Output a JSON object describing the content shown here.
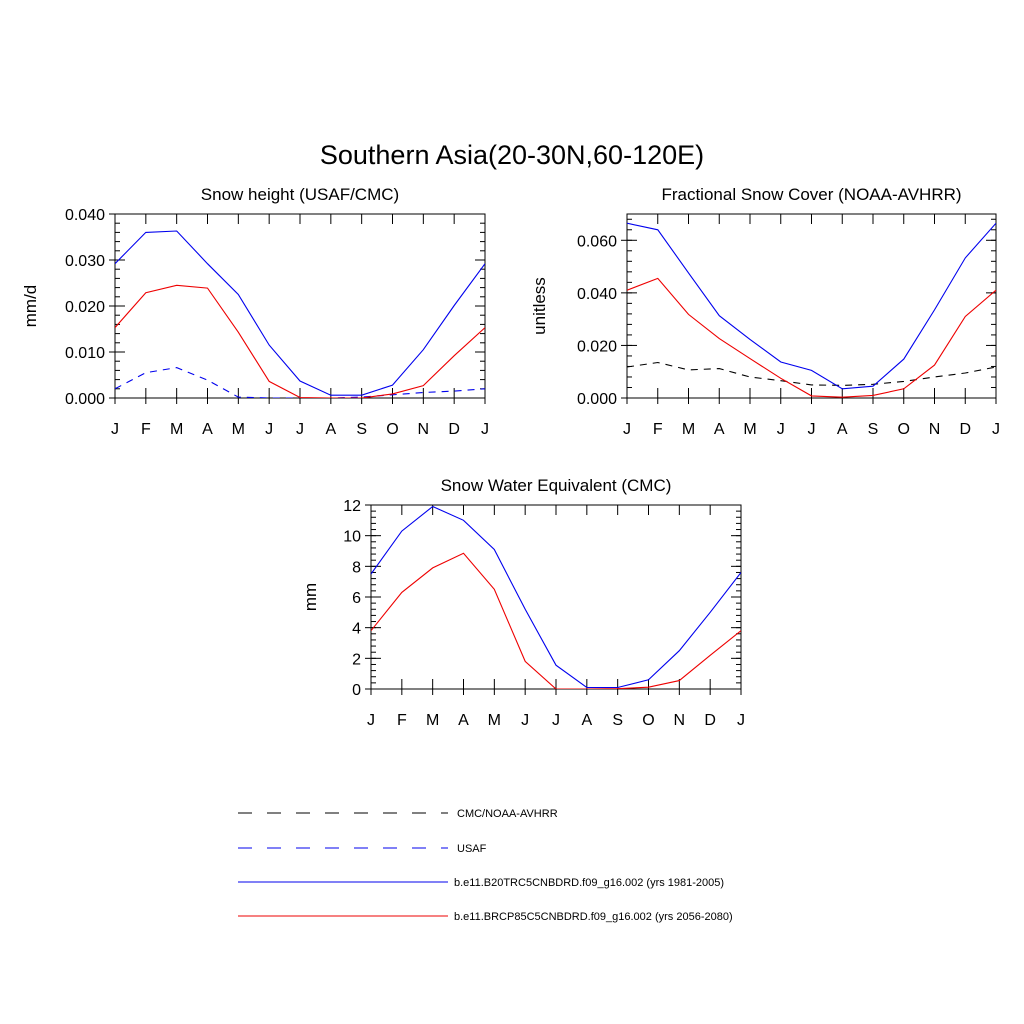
{
  "figure": {
    "title": "Southern Asia(20-30N,60-120E)"
  },
  "months": [
    "J",
    "F",
    "M",
    "A",
    "M",
    "J",
    "J",
    "A",
    "S",
    "O",
    "N",
    "D",
    "J"
  ],
  "colors": {
    "obs": "#000000",
    "usaf": "#0000ee",
    "hist": "#0000ee",
    "future": "#ee0000"
  },
  "legend": [
    {
      "key": "obs",
      "label": "CMC/NOAA-AVHRR",
      "dash": true,
      "color": "#000000"
    },
    {
      "key": "usaf",
      "label": "USAF",
      "dash": true,
      "color": "#0000ee"
    },
    {
      "key": "hist",
      "label": "b.e11.B20TRC5CNBDRD.f09_g16.002 (yrs 1981-2005)",
      "dash": false,
      "color": "#0000ee"
    },
    {
      "key": "future",
      "label": "b.e11.BRCP85C5CNBDRD.f09_g16.002 (yrs 2056-2080)",
      "dash": false,
      "color": "#ee0000"
    }
  ],
  "chart_data": [
    {
      "type": "line",
      "title": "Snow height (USAF/CMC)",
      "ylabel": "mm/d",
      "categories": [
        "J",
        "F",
        "M",
        "A",
        "M",
        "J",
        "J",
        "A",
        "S",
        "O",
        "N",
        "D",
        "J"
      ],
      "ylim": [
        0,
        0.04
      ],
      "yticks": [
        "0.000",
        "0.010",
        "0.020",
        "0.030",
        "0.040"
      ],
      "ytick_values": [
        0,
        0.01,
        0.02,
        0.03,
        0.04
      ],
      "series": [
        {
          "key": "obs",
          "values": [
            0,
            0,
            0,
            0,
            0,
            0,
            0,
            0,
            0,
            0,
            0,
            0,
            0
          ]
        },
        {
          "key": "usaf",
          "values": [
            0.002,
            0.0055,
            0.0066,
            0.0039,
            0.0002,
            0,
            0,
            0,
            0.0002,
            0.0007,
            0.0012,
            0.0015,
            0.002
          ]
        },
        {
          "key": "hist",
          "values": [
            0.0292,
            0.036,
            0.0363,
            0.0292,
            0.0225,
            0.0115,
            0.0037,
            0.0006,
            0.0006,
            0.0028,
            0.0105,
            0.0201,
            0.0292
          ]
        },
        {
          "key": "future",
          "values": [
            0.0153,
            0.0229,
            0.0245,
            0.0239,
            0.0143,
            0.0036,
            0.0001,
            0,
            0,
            0.0009,
            0.0027,
            0.0092,
            0.0153
          ]
        }
      ]
    },
    {
      "type": "line",
      "title": "Fractional Snow Cover (NOAA-AVHRR)",
      "ylabel": "unitless",
      "categories": [
        "J",
        "F",
        "M",
        "A",
        "M",
        "J",
        "J",
        "A",
        "S",
        "O",
        "N",
        "D",
        "J"
      ],
      "ylim": [
        0,
        0.07
      ],
      "yticks": [
        "0.000",
        "0.020",
        "0.040",
        "0.060"
      ],
      "ytick_values": [
        0,
        0.02,
        0.04,
        0.06
      ],
      "series": [
        {
          "key": "obs",
          "values": [
            0.0118,
            0.0135,
            0.0107,
            0.0112,
            0.008,
            0.0066,
            0.005,
            0.0048,
            0.0052,
            0.0063,
            0.008,
            0.0095,
            0.0118
          ]
        },
        {
          "key": "hist",
          "values": [
            0.0665,
            0.064,
            0.0476,
            0.0313,
            0.0223,
            0.0137,
            0.0105,
            0.0035,
            0.0045,
            0.0148,
            0.0335,
            0.0533,
            0.0665
          ]
        },
        {
          "key": "future",
          "values": [
            0.041,
            0.0455,
            0.0318,
            0.0226,
            0.015,
            0.0075,
            0.0008,
            0.0003,
            0.001,
            0.0035,
            0.0125,
            0.031,
            0.041
          ]
        }
      ]
    },
    {
      "type": "line",
      "title": "Snow Water Equivalent (CMC)",
      "ylabel": "mm",
      "categories": [
        "J",
        "F",
        "M",
        "A",
        "M",
        "J",
        "J",
        "A",
        "S",
        "O",
        "N",
        "D",
        "J"
      ],
      "ylim": [
        0,
        12
      ],
      "yticks": [
        "0",
        "2",
        "4",
        "6",
        "8",
        "10",
        "12"
      ],
      "ytick_values": [
        0,
        2,
        4,
        6,
        8,
        10,
        12
      ],
      "series": [
        {
          "key": "obs",
          "values": [
            0,
            0,
            0,
            0,
            0,
            0,
            0,
            0,
            0,
            0,
            0,
            0,
            0
          ]
        },
        {
          "key": "hist",
          "values": [
            7.5,
            10.3,
            11.9,
            11,
            9.1,
            5.2,
            1.55,
            0.1,
            0.1,
            0.6,
            2.5,
            5,
            7.6
          ]
        },
        {
          "key": "future",
          "values": [
            3.8,
            6.3,
            7.9,
            8.85,
            6.5,
            1.8,
            0,
            0,
            0.02,
            0.12,
            0.55,
            2.2,
            3.8
          ]
        }
      ]
    }
  ]
}
